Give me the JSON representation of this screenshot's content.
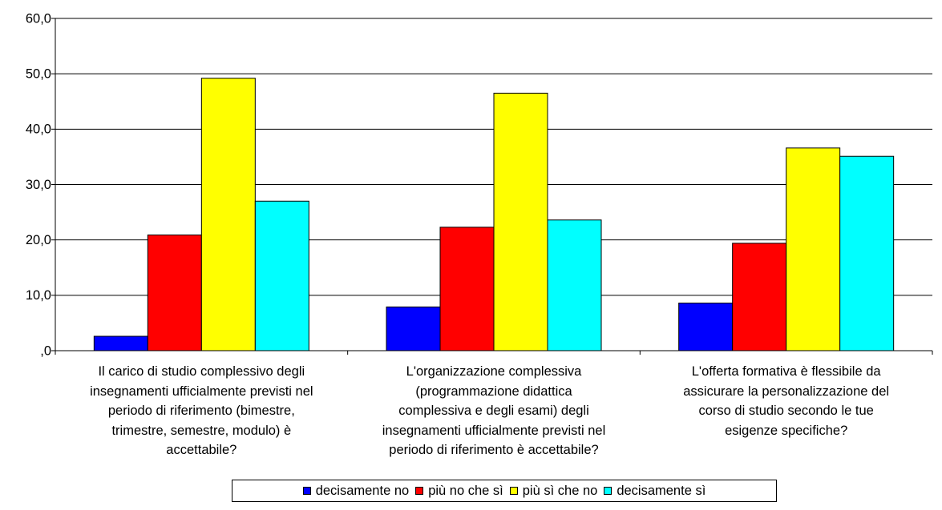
{
  "chart_data": {
    "type": "bar",
    "title": "",
    "xlabel": "",
    "ylabel": "",
    "ylim": [
      0,
      60
    ],
    "yticks": [
      0,
      10,
      20,
      30,
      40,
      50,
      60
    ],
    "ytick_labels": [
      ",0",
      "10,0",
      "20,0",
      "30,0",
      "40,0",
      "50,0",
      "60,0"
    ],
    "grid": true,
    "legend_position": "bottom",
    "categories": [
      [
        "Il carico di studio complessivo degli",
        "insegnamenti ufficialmente previsti nel",
        "periodo di riferimento (bimestre,",
        "trimestre, semestre, modulo) è",
        "accettabile?"
      ],
      [
        "L'organizzazione complessiva",
        "(programmazione didattica",
        "complessiva e degli esami) degli",
        "insegnamenti ufficialmente previsti nel",
        "periodo di riferimento è accettabile?"
      ],
      [
        "L'offerta formativa è flessibile da",
        "assicurare la personalizzazione del",
        "corso di studio secondo le tue",
        "esigenze specifiche?"
      ]
    ],
    "series": [
      {
        "name": "decisamente no",
        "color": "#0000FF",
        "values": [
          2.6,
          7.9,
          8.6
        ]
      },
      {
        "name": "più no che sì",
        "color": "#FF0000",
        "values": [
          20.9,
          22.3,
          19.4
        ]
      },
      {
        "name": "più sì che no",
        "color": "#FFFF00",
        "values": [
          49.2,
          46.5,
          36.6
        ]
      },
      {
        "name": "decisamente sì",
        "color": "#00FFFF",
        "values": [
          27.0,
          23.6,
          35.1
        ]
      }
    ]
  }
}
